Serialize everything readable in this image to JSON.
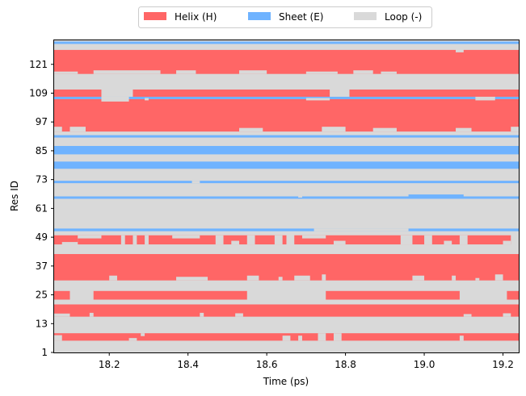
{
  "chart_data": {
    "type": "heatmap",
    "title": "",
    "xlabel": "Time (ps)",
    "ylabel": "Res ID",
    "xlim": [
      18.06,
      19.24
    ],
    "ylim": [
      1,
      131
    ],
    "x_ticks": [
      18.2,
      18.4,
      18.6,
      18.8,
      19.0,
      19.2
    ],
    "x_tick_labels": [
      "18.2",
      "18.4",
      "18.6",
      "18.8",
      "19.0",
      "19.2"
    ],
    "y_ticks": [
      1,
      13,
      25,
      37,
      49,
      61,
      73,
      85,
      97,
      109,
      121
    ],
    "y_tick_labels": [
      "1",
      "13",
      "25",
      "37",
      "49",
      "61",
      "73",
      "85",
      "97",
      "109",
      "121"
    ],
    "grid": false,
    "legend_position": "top-center",
    "background_state": "Loop (-)",
    "series": [
      {
        "name": "Helix (H)",
        "color": "#ff6666"
      },
      {
        "name": "Sheet (E)",
        "color": "#6fb3ff"
      },
      {
        "name": "Loop (-)",
        "color": "#d9d9d9"
      }
    ],
    "segments": [
      {
        "state": "Helix (H)",
        "x": [
          18.06,
          19.24
        ],
        "y": [
          5.9,
          9.0
        ]
      },
      {
        "state": "Loop (-)",
        "x": [
          18.06,
          18.08
        ],
        "y": [
          5.9,
          8.2
        ]
      },
      {
        "state": "Loop (-)",
        "x": [
          18.25,
          18.27
        ],
        "y": [
          5.9,
          7.0
        ]
      },
      {
        "state": "Loop (-)",
        "x": [
          18.28,
          18.29
        ],
        "y": [
          7.8,
          9.0
        ]
      },
      {
        "state": "Loop (-)",
        "x": [
          18.64,
          18.66
        ],
        "y": [
          5.9,
          8.0
        ]
      },
      {
        "state": "Loop (-)",
        "x": [
          18.68,
          18.69
        ],
        "y": [
          5.9,
          8.0
        ]
      },
      {
        "state": "Loop (-)",
        "x": [
          18.73,
          18.75
        ],
        "y": [
          5.9,
          9.0
        ]
      },
      {
        "state": "Loop (-)",
        "x": [
          18.77,
          18.79
        ],
        "y": [
          5.9,
          9.0
        ]
      },
      {
        "state": "Loop (-)",
        "x": [
          19.09,
          19.1
        ],
        "y": [
          5.9,
          8.0
        ]
      },
      {
        "state": "Helix (H)",
        "x": [
          18.06,
          19.24
        ],
        "y": [
          15.9,
          21.0
        ]
      },
      {
        "state": "Loop (-)",
        "x": [
          18.06,
          18.1
        ],
        "y": [
          15.9,
          17.2
        ]
      },
      {
        "state": "Loop (-)",
        "x": [
          18.15,
          18.16
        ],
        "y": [
          15.9,
          17.5
        ]
      },
      {
        "state": "Loop (-)",
        "x": [
          18.43,
          18.44
        ],
        "y": [
          15.9,
          17.5
        ]
      },
      {
        "state": "Loop (-)",
        "x": [
          18.52,
          18.54
        ],
        "y": [
          15.9,
          17.3
        ]
      },
      {
        "state": "Loop (-)",
        "x": [
          19.1,
          19.12
        ],
        "y": [
          15.9,
          17.0
        ]
      },
      {
        "state": "Loop (-)",
        "x": [
          19.2,
          19.22
        ],
        "y": [
          15.9,
          17.3
        ]
      },
      {
        "state": "Helix (H)",
        "x": [
          18.06,
          18.1
        ],
        "y": [
          23.0,
          26.6
        ]
      },
      {
        "state": "Helix (H)",
        "x": [
          18.16,
          18.55
        ],
        "y": [
          23.0,
          26.6
        ]
      },
      {
        "state": "Helix (H)",
        "x": [
          18.75,
          19.09
        ],
        "y": [
          23.0,
          26.6
        ]
      },
      {
        "state": "Helix (H)",
        "x": [
          19.21,
          19.24
        ],
        "y": [
          23.0,
          26.6
        ]
      },
      {
        "state": "Helix (H)",
        "x": [
          18.06,
          19.24
        ],
        "y": [
          31.0,
          42.0
        ]
      },
      {
        "state": "Loop (-)",
        "x": [
          18.2,
          18.22
        ],
        "y": [
          31.0,
          33.0
        ]
      },
      {
        "state": "Loop (-)",
        "x": [
          18.37,
          18.45
        ],
        "y": [
          31.0,
          32.5
        ]
      },
      {
        "state": "Loop (-)",
        "x": [
          18.55,
          18.58
        ],
        "y": [
          31.0,
          33.0
        ]
      },
      {
        "state": "Loop (-)",
        "x": [
          18.63,
          18.64
        ],
        "y": [
          31.0,
          32.5
        ]
      },
      {
        "state": "Loop (-)",
        "x": [
          18.67,
          18.71
        ],
        "y": [
          31.0,
          33.0
        ]
      },
      {
        "state": "Loop (-)",
        "x": [
          18.74,
          18.75
        ],
        "y": [
          31.0,
          33.5
        ]
      },
      {
        "state": "Loop (-)",
        "x": [
          18.97,
          19.0
        ],
        "y": [
          31.0,
          33.0
        ]
      },
      {
        "state": "Loop (-)",
        "x": [
          19.07,
          19.08
        ],
        "y": [
          31.0,
          33.0
        ]
      },
      {
        "state": "Loop (-)",
        "x": [
          19.13,
          19.14
        ],
        "y": [
          31.0,
          32.0
        ]
      },
      {
        "state": "Loop (-)",
        "x": [
          19.18,
          19.2
        ],
        "y": [
          31.0,
          33.5
        ]
      },
      {
        "state": "Loop (-)",
        "x": [
          18.06,
          19.24
        ],
        "y": [
          42.0,
          45.0
        ]
      },
      {
        "state": "Helix (H)",
        "x": [
          18.06,
          18.12
        ],
        "y": [
          47.0,
          49.8
        ]
      },
      {
        "state": "Helix (H)",
        "x": [
          18.06,
          18.08
        ],
        "y": [
          46.0,
          47.5
        ]
      },
      {
        "state": "Helix (H)",
        "x": [
          18.12,
          18.65
        ],
        "y": [
          46.0,
          49.8
        ]
      },
      {
        "state": "Helix (H)",
        "x": [
          18.67,
          19.22
        ],
        "y": [
          46.0,
          49.8
        ]
      },
      {
        "state": "Loop (-)",
        "x": [
          18.12,
          18.18
        ],
        "y": [
          48.5,
          49.8
        ]
      },
      {
        "state": "Loop (-)",
        "x": [
          18.23,
          18.24
        ],
        "y": [
          46.0,
          49.8
        ]
      },
      {
        "state": "Loop (-)",
        "x": [
          18.26,
          18.27
        ],
        "y": [
          46.0,
          49.8
        ]
      },
      {
        "state": "Loop (-)",
        "x": [
          18.29,
          18.3
        ],
        "y": [
          46.0,
          49.8
        ]
      },
      {
        "state": "Loop (-)",
        "x": [
          18.36,
          18.43
        ],
        "y": [
          48.5,
          49.8
        ]
      },
      {
        "state": "Loop (-)",
        "x": [
          18.47,
          18.49
        ],
        "y": [
          46.0,
          49.8
        ]
      },
      {
        "state": "Loop (-)",
        "x": [
          18.51,
          18.53
        ],
        "y": [
          46.0,
          47.5
        ]
      },
      {
        "state": "Loop (-)",
        "x": [
          18.55,
          18.57
        ],
        "y": [
          46.0,
          49.8
        ]
      },
      {
        "state": "Loop (-)",
        "x": [
          18.62,
          18.64
        ],
        "y": [
          46.0,
          49.8
        ]
      },
      {
        "state": "Loop (-)",
        "x": [
          18.69,
          18.75
        ],
        "y": [
          48.5,
          49.8
        ]
      },
      {
        "state": "Loop (-)",
        "x": [
          18.77,
          18.8
        ],
        "y": [
          46.0,
          47.5
        ]
      },
      {
        "state": "Loop (-)",
        "x": [
          18.94,
          18.97
        ],
        "y": [
          46.0,
          49.8
        ]
      },
      {
        "state": "Loop (-)",
        "x": [
          19.0,
          19.02
        ],
        "y": [
          46.0,
          49.8
        ]
      },
      {
        "state": "Loop (-)",
        "x": [
          19.05,
          19.07
        ],
        "y": [
          46.0,
          47.5
        ]
      },
      {
        "state": "Loop (-)",
        "x": [
          19.09,
          19.11
        ],
        "y": [
          46.0,
          49.8
        ]
      },
      {
        "state": "Loop (-)",
        "x": [
          19.2,
          19.22
        ],
        "y": [
          46.0,
          47.5
        ]
      },
      {
        "state": "Sheet (E)",
        "x": [
          18.06,
          19.24
        ],
        "y": [
          51.5,
          52.6
        ]
      },
      {
        "state": "Loop (-)",
        "x": [
          18.72,
          18.96
        ],
        "y": [
          51.5,
          52.6
        ]
      },
      {
        "state": "Sheet (E)",
        "x": [
          18.06,
          19.24
        ],
        "y": [
          65.0,
          66.0
        ]
      },
      {
        "state": "Loop (-)",
        "x": [
          18.68,
          18.69
        ],
        "y": [
          65.5,
          67.0
        ]
      },
      {
        "state": "Sheet (E)",
        "x": [
          18.96,
          19.1
        ],
        "y": [
          65.5,
          66.8
        ]
      },
      {
        "state": "Sheet (E)",
        "x": [
          18.06,
          19.24
        ],
        "y": [
          71.5,
          72.5
        ]
      },
      {
        "state": "Loop (-)",
        "x": [
          18.41,
          18.43
        ],
        "y": [
          71.5,
          72.5
        ]
      },
      {
        "state": "Sheet (E)",
        "x": [
          18.06,
          19.24
        ],
        "y": [
          77.5,
          80.5
        ]
      },
      {
        "state": "Sheet (E)",
        "x": [
          18.06,
          19.24
        ],
        "y": [
          83.5,
          87.0
        ]
      },
      {
        "state": "Sheet (E)",
        "x": [
          18.06,
          19.24
        ],
        "y": [
          90.5,
          91.5
        ]
      },
      {
        "state": "Helix (H)",
        "x": [
          18.06,
          19.24
        ],
        "y": [
          93.0,
          106.5
        ]
      },
      {
        "state": "Loop (-)",
        "x": [
          18.06,
          18.08
        ],
        "y": [
          93.0,
          95.0
        ]
      },
      {
        "state": "Loop (-)",
        "x": [
          18.1,
          18.14
        ],
        "y": [
          93.0,
          95.0
        ]
      },
      {
        "state": "Loop (-)",
        "x": [
          18.53,
          18.59
        ],
        "y": [
          93.0,
          94.5
        ]
      },
      {
        "state": "Loop (-)",
        "x": [
          18.74,
          18.8
        ],
        "y": [
          93.0,
          95.0
        ]
      },
      {
        "state": "Loop (-)",
        "x": [
          18.87,
          18.93
        ],
        "y": [
          93.0,
          94.5
        ]
      },
      {
        "state": "Loop (-)",
        "x": [
          19.08,
          19.12
        ],
        "y": [
          93.0,
          94.5
        ]
      },
      {
        "state": "Loop (-)",
        "x": [
          19.22,
          19.24
        ],
        "y": [
          93.0,
          95.0
        ]
      },
      {
        "state": "Sheet (E)",
        "x": [
          18.06,
          19.24
        ],
        "y": [
          106.5,
          107.5
        ]
      },
      {
        "state": "Helix (H)",
        "x": [
          18.06,
          18.18
        ],
        "y": [
          107.5,
          110.5
        ]
      },
      {
        "state": "Helix (H)",
        "x": [
          18.26,
          18.76
        ],
        "y": [
          107.5,
          110.5
        ]
      },
      {
        "state": "Helix (H)",
        "x": [
          18.81,
          19.24
        ],
        "y": [
          107.5,
          110.5
        ]
      },
      {
        "state": "Loop (-)",
        "x": [
          18.18,
          18.25
        ],
        "y": [
          105.5,
          107.5
        ]
      },
      {
        "state": "Loop (-)",
        "x": [
          18.29,
          18.3
        ],
        "y": [
          106.0,
          107.0
        ]
      },
      {
        "state": "Loop (-)",
        "x": [
          18.7,
          18.76
        ],
        "y": [
          106.0,
          107.0
        ]
      },
      {
        "state": "Loop (-)",
        "x": [
          19.13,
          19.18
        ],
        "y": [
          106.0,
          107.5
        ]
      },
      {
        "state": "Helix (H)",
        "x": [
          18.06,
          19.24
        ],
        "y": [
          117.0,
          127.0
        ]
      },
      {
        "state": "Loop (-)",
        "x": [
          18.06,
          18.12
        ],
        "y": [
          117.0,
          118.0
        ]
      },
      {
        "state": "Loop (-)",
        "x": [
          18.16,
          18.33
        ],
        "y": [
          117.0,
          118.5
        ]
      },
      {
        "state": "Loop (-)",
        "x": [
          18.37,
          18.42
        ],
        "y": [
          117.0,
          118.5
        ]
      },
      {
        "state": "Loop (-)",
        "x": [
          18.53,
          18.6
        ],
        "y": [
          117.0,
          118.5
        ]
      },
      {
        "state": "Loop (-)",
        "x": [
          18.7,
          18.78
        ],
        "y": [
          117.0,
          118.0
        ]
      },
      {
        "state": "Loop (-)",
        "x": [
          18.82,
          18.87
        ],
        "y": [
          117.0,
          118.5
        ]
      },
      {
        "state": "Loop (-)",
        "x": [
          18.89,
          18.93
        ],
        "y": [
          117.0,
          118.0
        ]
      },
      {
        "state": "Loop (-)",
        "x": [
          19.08,
          19.1
        ],
        "y": [
          126.0,
          127.5
        ]
      },
      {
        "state": "Sheet (E)",
        "x": [
          18.06,
          19.24
        ],
        "y": [
          129.5,
          130.5
        ]
      }
    ]
  }
}
